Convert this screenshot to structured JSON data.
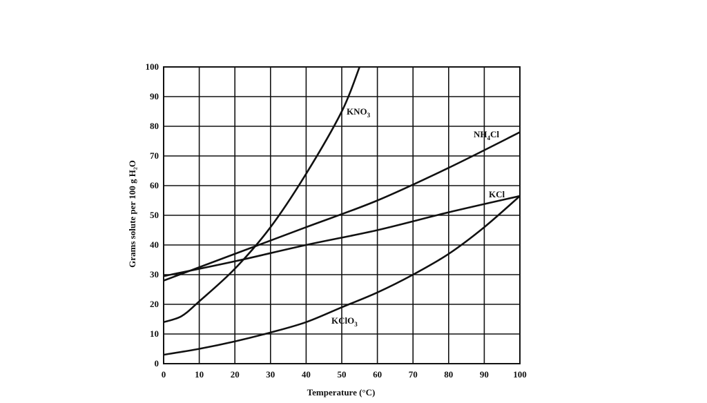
{
  "chart_data": {
    "type": "line",
    "title": "",
    "xlabel": "Temperature (°C)",
    "ylabel": "Grams solute per 100 g H₂O",
    "xlim": [
      0,
      100
    ],
    "ylim": [
      0,
      100
    ],
    "xticks": [
      0,
      10,
      20,
      30,
      40,
      50,
      60,
      70,
      80,
      90,
      100
    ],
    "yticks": [
      0,
      10,
      20,
      30,
      40,
      50,
      60,
      70,
      80,
      90,
      100
    ],
    "grid": true,
    "series": [
      {
        "name": "KNO₃",
        "label_main": "KNO",
        "label_sub": "3",
        "label_tail": "",
        "x": [
          0,
          5,
          10,
          20,
          30,
          40,
          50,
          55
        ],
        "y": [
          14,
          16,
          21,
          32,
          46,
          64,
          85,
          100
        ]
      },
      {
        "name": "NH₄Cl",
        "label_main": "NH",
        "label_sub": "4",
        "label_tail": "Cl",
        "x": [
          0,
          20,
          40,
          60,
          80,
          100
        ],
        "y": [
          28,
          37,
          46,
          55,
          66,
          78
        ]
      },
      {
        "name": "KCl",
        "label_main": "KCl",
        "label_sub": "",
        "label_tail": "",
        "x": [
          0,
          20,
          40,
          60,
          80,
          100
        ],
        "y": [
          29.5,
          34.5,
          40,
          45,
          51,
          56.5
        ]
      },
      {
        "name": "KClO₃",
        "label_main": "KClO",
        "label_sub": "3",
        "label_tail": "",
        "x": [
          0,
          10,
          20,
          30,
          40,
          50,
          60,
          70,
          80,
          90,
          100
        ],
        "y": [
          3,
          5,
          7.5,
          10.5,
          14,
          19,
          24,
          30,
          37,
          46,
          56.5
        ]
      }
    ]
  }
}
